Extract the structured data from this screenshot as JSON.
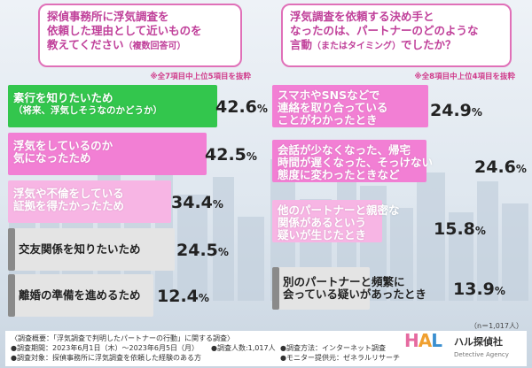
{
  "left": {
    "question_line1": "探偵事務所に浮気調査を",
    "question_line2": "依頼した理由として近いものを",
    "question_line3": "教えてください",
    "question_note": "（複数回答可）",
    "subnote": "※全7項目中上位5項目を抜粋",
    "items": [
      {
        "line1": "素行を知りたいため",
        "line2": "（将来、浮気しそうなのかどうか）",
        "value_num": "42.6",
        "value_unit": "%"
      },
      {
        "line1": "浮気をしているのか",
        "line2": "気になったため",
        "value_num": "42.5",
        "value_unit": "%"
      },
      {
        "line1": "浮気や不倫をしている",
        "line2": "証拠を得たかったため",
        "value_num": "34.4",
        "value_unit": "%"
      },
      {
        "line1": "交友関係を知りたいため",
        "line2": "",
        "value_num": "24.5",
        "value_unit": "%"
      },
      {
        "line1": "離婚の準備を進めるため",
        "line2": "",
        "value_num": "12.4",
        "value_unit": "%"
      }
    ]
  },
  "right": {
    "question_line1": "浮気調査を依頼する決め手と",
    "question_line2": "なったのは、パートナーのどのような",
    "question_line3": "言動",
    "question_note": "（またはタイミング）",
    "question_tail": "でしたか？",
    "subnote": "※全8項目中上位4項目を抜粋",
    "items": [
      {
        "line1": "スマホやSNSなどで",
        "line2": "連絡を取り合っている",
        "line3": "ことがわかったとき",
        "value_num": "24.9",
        "value_unit": "%"
      },
      {
        "line1": "会話が少なくなった、帰宅",
        "line2": "時間が遅くなった、そっけない",
        "line3": "態度に変わったときなど",
        "value_num": "24.6",
        "value_unit": "%"
      },
      {
        "line1": "他のパートナーと親密な",
        "line2": "関係があるという",
        "line3": "疑いが生じたとき",
        "value_num": "15.8",
        "value_unit": "%"
      },
      {
        "line1": "別のパートナーと頻繁に",
        "line2": "会っている疑いがあったとき",
        "line3": "",
        "value_num": "13.9",
        "value_unit": "%"
      }
    ]
  },
  "sample_size": "（n＝1,017人）",
  "footer": {
    "line1": "〈調査概要：「浮気調査で判明したパートナーの行動」に関する調査〉",
    "line2": "●調査期間：2023年6月1日（木）～2023年6月5日（月）",
    "line3": "●調査対象：探偵事務所に浮気調査を依頼した経験のある方",
    "people": "●調査人数:1,017人",
    "method": "●調査方法：インターネット調査",
    "monitor": "●モニター提供元：ゼネラルリサーチ"
  },
  "logo": {
    "mark": "HAL",
    "name": "ハル探偵社",
    "en": "Detective Agency"
  },
  "colors": {
    "green": "#33c64d",
    "pink": "#f27fd4",
    "light_pink": "#f7b5e4",
    "gray": "#e4e4e4",
    "dark_gray": "#8a8a8a",
    "accent": "#e070b8"
  }
}
